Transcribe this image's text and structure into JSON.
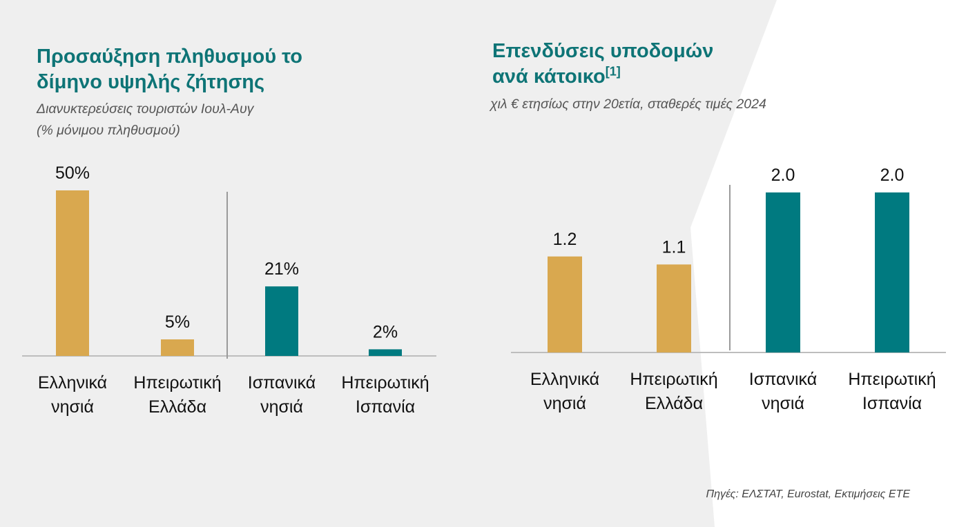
{
  "left_panel": {
    "title_line1": "Προσαύξηση πληθυσμού το",
    "title_line2": "δίμηνο υψηλής ζήτησης",
    "subtitle_line1": "Διανυκτερεύσεις τουριστών Ιουλ-Αυγ",
    "subtitle_line2": "(% μόνιμου πληθυσμού)"
  },
  "right_panel": {
    "title_line1": "Επενδύσεις υποδομών",
    "title_line2": "ανά κάτοικο",
    "title_footnote": "[1]",
    "subtitle": "χιλ € ετησίως στην 20ετία, σταθερές τιμές 2024"
  },
  "source": "Πηγές: ΕΛΣΤΑΤ, Eurostat, Εκτιμήσεις ΕΤΕ",
  "colors": {
    "gold": "#d9a84f",
    "teal": "#007a80",
    "title": "#0e7476",
    "axis": "#bdbdbd",
    "divider": "#9a9a9a"
  },
  "chart_data": [
    {
      "type": "bar",
      "title": "Προσαύξηση πληθυσμού το δίμηνο υψηλής ζήτησης",
      "subtitle": "Διανυκτερεύσεις τουριστών Ιουλ-Αυγ (% μόνιμου πληθυσμού)",
      "categories": [
        [
          "Ελληνικά",
          "νησιά"
        ],
        [
          "Ηπειρωτική",
          "Ελλάδα"
        ],
        [
          "Ισπανικά",
          "νησιά"
        ],
        [
          "Ηπειρωτική",
          "Ισπανία"
        ]
      ],
      "values": [
        50,
        5,
        21,
        2
      ],
      "value_labels": [
        "50%",
        "5%",
        "21%",
        "2%"
      ],
      "bar_colors": [
        "#d9a84f",
        "#d9a84f",
        "#007a80",
        "#007a80"
      ],
      "ylim": [
        0,
        50
      ],
      "grid": false,
      "divider_between": [
        1,
        2
      ]
    },
    {
      "type": "bar",
      "title": "Επενδύσεις υποδομών ανά κάτοικο",
      "subtitle": "χιλ € ετησίως στην 20ετία, σταθερές τιμές 2024",
      "categories": [
        [
          "Ελληνικά",
          "νησιά"
        ],
        [
          "Ηπειρωτική",
          "Ελλάδα"
        ],
        [
          "Ισπανικά",
          "νησιά"
        ],
        [
          "Ηπειρωτική",
          "Ισπανία"
        ]
      ],
      "values": [
        1.2,
        1.1,
        2.0,
        2.0
      ],
      "value_labels": [
        "1.2",
        "1.1",
        "2.0",
        "2.0"
      ],
      "bar_colors": [
        "#d9a84f",
        "#d9a84f",
        "#007a80",
        "#007a80"
      ],
      "ylim": [
        0,
        2.0
      ],
      "grid": false,
      "divider_between": [
        1,
        2
      ]
    }
  ]
}
